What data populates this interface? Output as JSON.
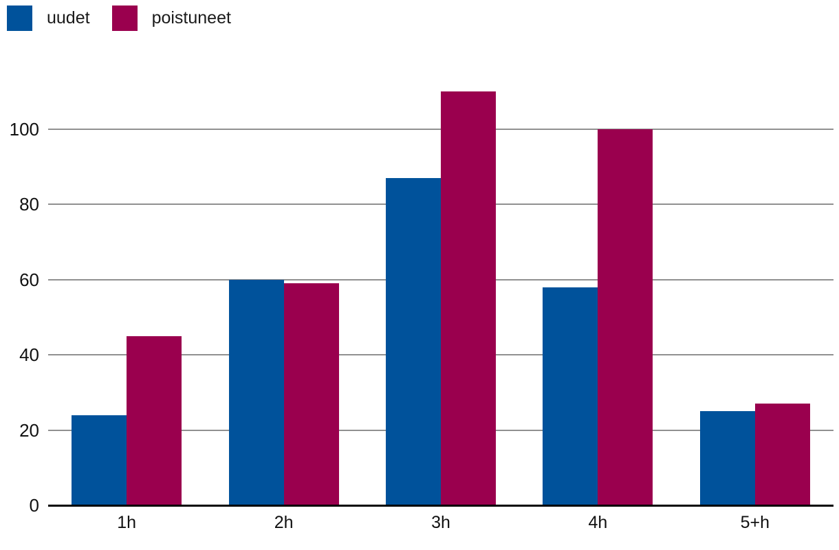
{
  "chart_data": {
    "type": "bar",
    "categories": [
      "1h",
      "2h",
      "3h",
      "4h",
      "5+h"
    ],
    "series": [
      {
        "name": "uudet",
        "color": "#00529B",
        "values": [
          24,
          60,
          87,
          58,
          25
        ]
      },
      {
        "name": "poistuneet",
        "color": "#9A004E",
        "values": [
          45,
          59,
          110,
          100,
          27
        ]
      }
    ],
    "title": "",
    "xlabel": "",
    "ylabel": "",
    "yticks": [
      0,
      20,
      40,
      60,
      80,
      100
    ],
    "ylim": [
      0,
      118
    ],
    "grid": true,
    "legend_position": "top-left"
  },
  "colors": {
    "gridline": "#909090",
    "axis_line": "#000000",
    "text": "#111111",
    "background": "#ffffff"
  }
}
